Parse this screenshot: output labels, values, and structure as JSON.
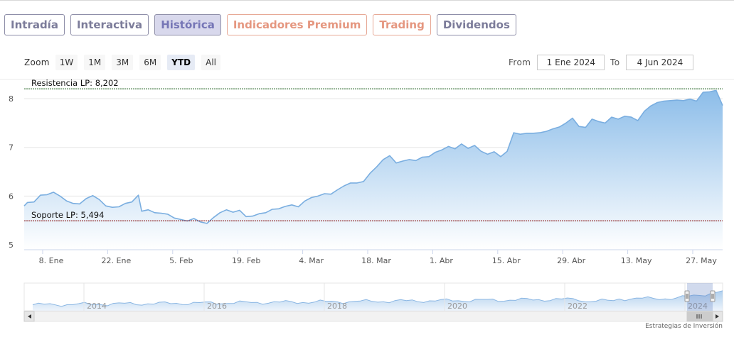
{
  "tabs": [
    {
      "label": "Intradía",
      "style": "normal"
    },
    {
      "label": "Interactiva",
      "style": "normal"
    },
    {
      "label": "Histórica",
      "style": "active"
    },
    {
      "label": "Indicadores Premium",
      "style": "orange"
    },
    {
      "label": "Trading",
      "style": "orange"
    },
    {
      "label": "Dividendos",
      "style": "normal"
    }
  ],
  "zoom": {
    "label": "Zoom",
    "buttons": [
      "1W",
      "1M",
      "3M",
      "6M",
      "YTD",
      "All"
    ],
    "selected": "YTD"
  },
  "range": {
    "from_label": "From",
    "from_value": "1 Ene 2024",
    "to_label": "To",
    "to_value": "4 Jun 2024"
  },
  "chart_data": {
    "type": "area",
    "ylim": [
      4.9,
      8.3
    ],
    "y_ticks": [
      "5",
      "6",
      "7",
      "8"
    ],
    "x_tick_labels": [
      "8. Ene",
      "22. Ene",
      "5. Feb",
      "19. Feb",
      "4. Mar",
      "18. Mar",
      "1. Abr",
      "15. Abr",
      "29. Abr",
      "13. May",
      "27. May"
    ],
    "x_day_range": [
      0,
      156
    ],
    "points": [
      [
        0,
        5.8
      ],
      [
        1,
        5.87
      ],
      [
        3,
        5.88
      ],
      [
        5,
        6.02
      ],
      [
        7,
        6.03
      ],
      [
        9,
        6.08
      ],
      [
        11,
        6.0
      ],
      [
        13,
        5.9
      ],
      [
        15,
        5.85
      ],
      [
        17,
        5.84
      ],
      [
        19,
        5.95
      ],
      [
        21,
        6.01
      ],
      [
        23,
        5.93
      ],
      [
        25,
        5.8
      ],
      [
        27,
        5.77
      ],
      [
        29,
        5.78
      ],
      [
        31,
        5.85
      ],
      [
        33,
        5.88
      ],
      [
        35,
        6.02
      ],
      [
        36,
        5.69
      ],
      [
        38,
        5.72
      ],
      [
        40,
        5.66
      ],
      [
        42,
        5.65
      ],
      [
        44,
        5.63
      ],
      [
        46,
        5.55
      ],
      [
        48,
        5.52
      ],
      [
        50,
        5.49
      ],
      [
        52,
        5.54
      ],
      [
        54,
        5.47
      ],
      [
        56,
        5.44
      ],
      [
        58,
        5.56
      ],
      [
        60,
        5.66
      ],
      [
        62,
        5.72
      ],
      [
        64,
        5.67
      ],
      [
        66,
        5.71
      ],
      [
        68,
        5.58
      ],
      [
        70,
        5.59
      ],
      [
        72,
        5.64
      ],
      [
        74,
        5.66
      ],
      [
        76,
        5.73
      ],
      [
        78,
        5.74
      ],
      [
        80,
        5.79
      ],
      [
        82,
        5.82
      ],
      [
        84,
        5.78
      ],
      [
        86,
        5.9
      ],
      [
        88,
        5.97
      ],
      [
        90,
        6.0
      ],
      [
        92,
        6.05
      ],
      [
        94,
        6.04
      ],
      [
        96,
        6.13
      ],
      [
        98,
        6.21
      ],
      [
        100,
        6.27
      ],
      [
        102,
        6.27
      ],
      [
        104,
        6.3
      ],
      [
        106,
        6.47
      ],
      [
        108,
        6.6
      ],
      [
        110,
        6.75
      ],
      [
        112,
        6.83
      ],
      [
        114,
        6.68
      ],
      [
        116,
        6.72
      ],
      [
        118,
        6.75
      ],
      [
        120,
        6.73
      ],
      [
        122,
        6.8
      ],
      [
        124,
        6.81
      ],
      [
        126,
        6.9
      ],
      [
        128,
        6.95
      ],
      [
        130,
        7.02
      ],
      [
        132,
        6.97
      ],
      [
        134,
        7.07
      ],
      [
        136,
        6.98
      ],
      [
        138,
        7.04
      ],
      [
        140,
        6.92
      ],
      [
        142,
        6.86
      ],
      [
        144,
        6.91
      ],
      [
        146,
        6.81
      ],
      [
        148,
        6.92
      ],
      [
        150,
        7.3
      ],
      [
        152,
        7.27
      ],
      [
        154,
        7.29
      ],
      [
        156,
        7.29
      ]
    ],
    "points_tail": [
      [
        158,
        7.3
      ],
      [
        160,
        7.33
      ],
      [
        162,
        7.38
      ],
      [
        164,
        7.42
      ],
      [
        166,
        7.5
      ],
      [
        168,
        7.6
      ],
      [
        170,
        7.43
      ],
      [
        172,
        7.41
      ],
      [
        174,
        7.58
      ],
      [
        176,
        7.53
      ],
      [
        178,
        7.5
      ],
      [
        180,
        7.62
      ],
      [
        182,
        7.58
      ],
      [
        184,
        7.64
      ],
      [
        186,
        7.62
      ],
      [
        188,
        7.55
      ],
      [
        190,
        7.74
      ],
      [
        192,
        7.85
      ],
      [
        194,
        7.92
      ],
      [
        196,
        7.95
      ],
      [
        198,
        7.96
      ],
      [
        200,
        7.97
      ],
      [
        202,
        7.96
      ],
      [
        204,
        7.99
      ],
      [
        206,
        7.95
      ],
      [
        208,
        8.13
      ],
      [
        210,
        8.14
      ],
      [
        212,
        8.17
      ],
      [
        214,
        7.86
      ]
    ],
    "resistance": {
      "label": "Resistencia LP: 8,202",
      "value": 8.202
    },
    "support": {
      "label": "Soporte LP: 5,494",
      "value": 5.494
    },
    "navigator": {
      "years": [
        "2014",
        "2016",
        "2018",
        "2020",
        "2022",
        "2024"
      ]
    },
    "colors": {
      "line": "#7aaee0",
      "fill_top": "#8cbde9",
      "fill_bottom": "#ffffff",
      "resistance": "#2d6b2d",
      "support": "#8b1a1a",
      "grid": "#e6e6e6"
    }
  },
  "credit": "Estrategias de Inversión"
}
